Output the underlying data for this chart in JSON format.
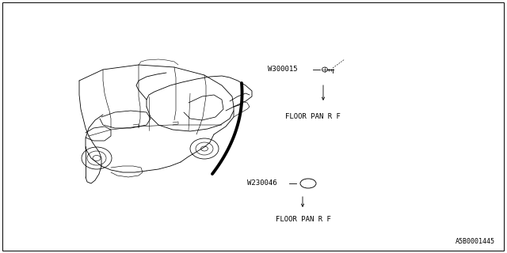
{
  "bg_color": "#ffffff",
  "border_color": "#000000",
  "fig_width": 6.4,
  "fig_height": 3.2,
  "dpi": 100,
  "part1_label": "W300015",
  "part1_dest": "FLOOR PAN R F",
  "part2_label": "W230046",
  "part2_dest": "FLOOR PAN R F",
  "diagram_id": "A5B0001445",
  "font_size": 6.5,
  "small_font_size": 6,
  "car_lw": 0.55,
  "cable_lw": 2.8,
  "anno_lw": 0.55
}
